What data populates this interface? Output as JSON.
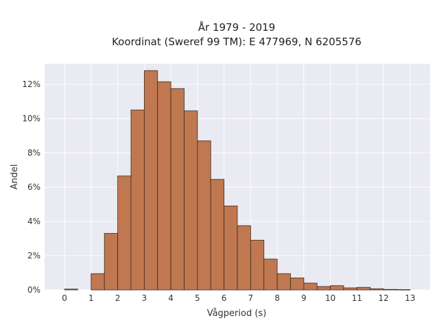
{
  "chart_data": {
    "type": "bar",
    "title": [
      "År 1979 - 2019",
      "Koordinat (Sweref 99 TM): E 477969, N 6205576"
    ],
    "xlabel": "Vågperiod (s)",
    "ylabel": "Andel",
    "xlim": [
      -0.75,
      13.75
    ],
    "ylim": [
      0,
      13.2
    ],
    "bin_width": 0.5,
    "x_ticks": [
      0,
      1,
      2,
      3,
      4,
      5,
      6,
      7,
      8,
      9,
      10,
      11,
      12,
      13
    ],
    "x_tick_labels": [
      "0",
      "1",
      "2",
      "3",
      "4",
      "5",
      "6",
      "7",
      "8",
      "9",
      "10",
      "11",
      "12",
      "13"
    ],
    "y_ticks": [
      0,
      2,
      4,
      6,
      8,
      10,
      12
    ],
    "y_tick_labels": [
      "0%",
      "2%",
      "4%",
      "6%",
      "8%",
      "10%",
      "12%"
    ],
    "bin_starts": [
      0,
      1,
      1.5,
      2,
      2.5,
      3,
      3.5,
      4,
      4.5,
      5,
      5.5,
      6,
      6.5,
      7,
      7.5,
      8,
      8.5,
      9,
      9.5,
      10,
      10.5,
      11,
      11.5,
      12,
      12.5
    ],
    "values": [
      0.05,
      0.95,
      3.3,
      6.65,
      10.5,
      12.8,
      12.15,
      11.75,
      10.45,
      8.7,
      6.45,
      4.9,
      3.75,
      2.9,
      1.8,
      0.95,
      0.7,
      0.4,
      0.2,
      0.25,
      0.12,
      0.15,
      0.07,
      0.03,
      0.02
    ],
    "grid": true,
    "colors": {
      "bar_fill": "#c07850",
      "bar_edge": "#3a2a1e",
      "plot_background": "#e9eaf2",
      "grid": "#ffffff"
    }
  }
}
